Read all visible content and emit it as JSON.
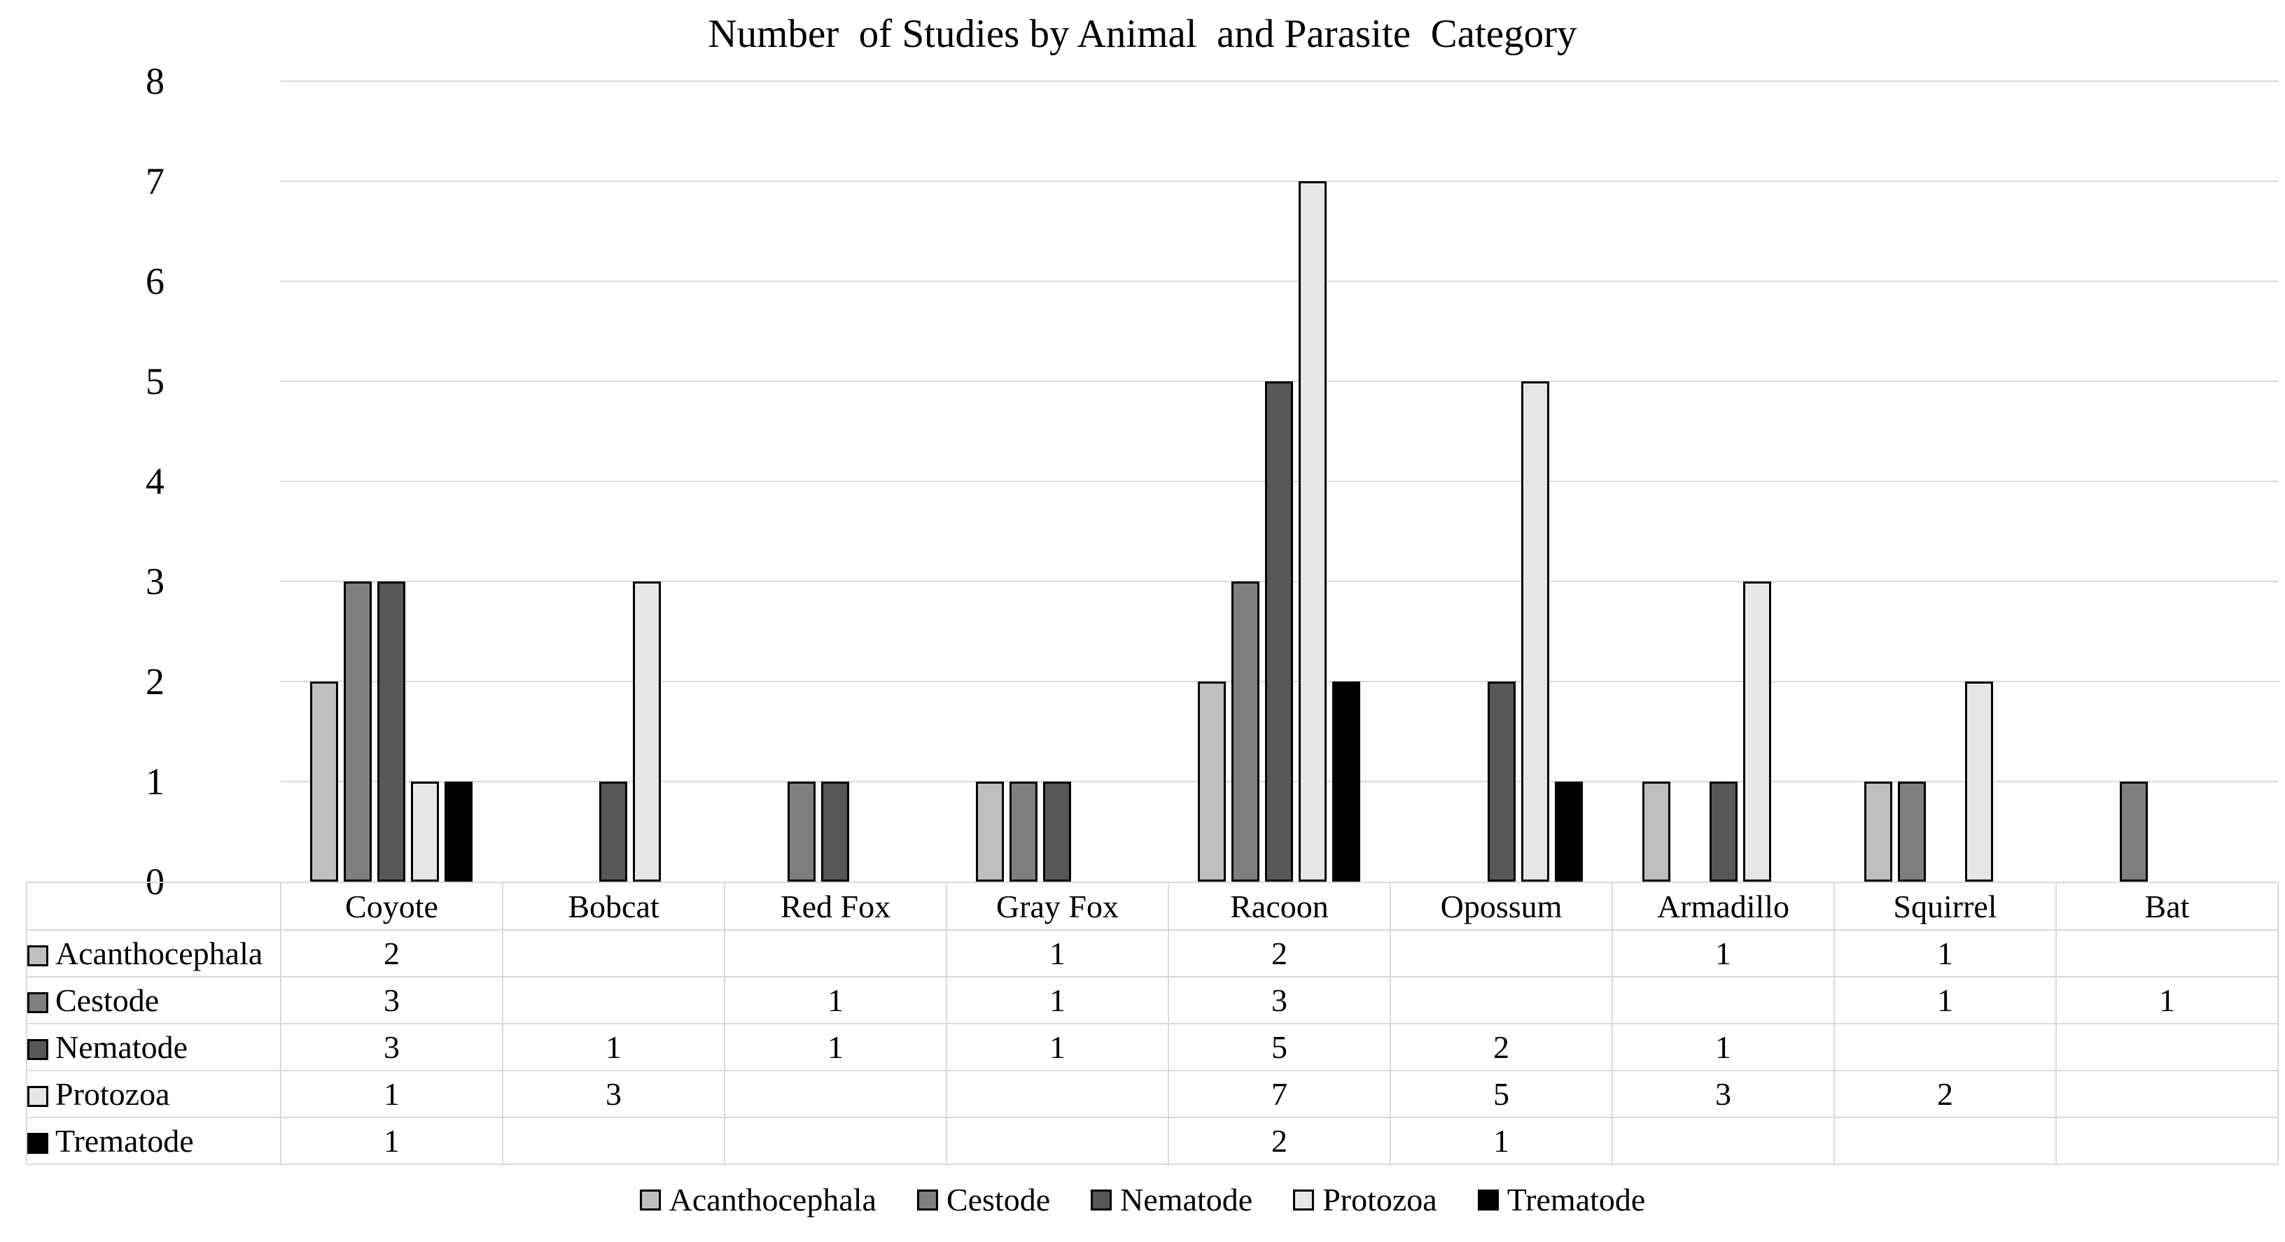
{
  "title": "Number  of Studies by Animal  and Parasite  Category",
  "chart_data": {
    "type": "bar",
    "title": "Number of Studies by Animal and Parasite Category",
    "categories": [
      "Coyote",
      "Bobcat",
      "Red Fox",
      "Gray Fox",
      "Racoon",
      "Opossum",
      "Armadillo",
      "Squirrel",
      "Bat"
    ],
    "series": [
      {
        "name": "Acanthocephala",
        "color": "#bfbfbf",
        "values": [
          2,
          null,
          null,
          1,
          2,
          null,
          1,
          1,
          null
        ]
      },
      {
        "name": "Cestode",
        "color": "#7f7f7f",
        "values": [
          3,
          null,
          1,
          1,
          3,
          null,
          null,
          1,
          1
        ]
      },
      {
        "name": "Nematode",
        "color": "#575757",
        "values": [
          3,
          1,
          1,
          1,
          5,
          2,
          1,
          null,
          null
        ]
      },
      {
        "name": "Protozoa",
        "color": "#e6e6e6",
        "values": [
          1,
          3,
          null,
          null,
          7,
          5,
          3,
          2,
          null
        ]
      },
      {
        "name": "Trematode",
        "color": "#000000",
        "values": [
          1,
          null,
          null,
          null,
          2,
          1,
          null,
          null,
          null
        ]
      }
    ],
    "y_axis": {
      "min": 0,
      "max": 8,
      "step": 1,
      "tick_labels": [
        "0",
        "1",
        "2",
        "3",
        "4",
        "5",
        "6",
        "7",
        "8"
      ]
    },
    "grid": true,
    "gridline_color": "#d9d9d9",
    "bar_border_color": "#000000",
    "legend_position": "bottom",
    "legend_items": [
      "Acanthocephala",
      "Cestode",
      "Nematode",
      "Protozoa",
      "Trematode"
    ],
    "data_table_shown": true
  }
}
